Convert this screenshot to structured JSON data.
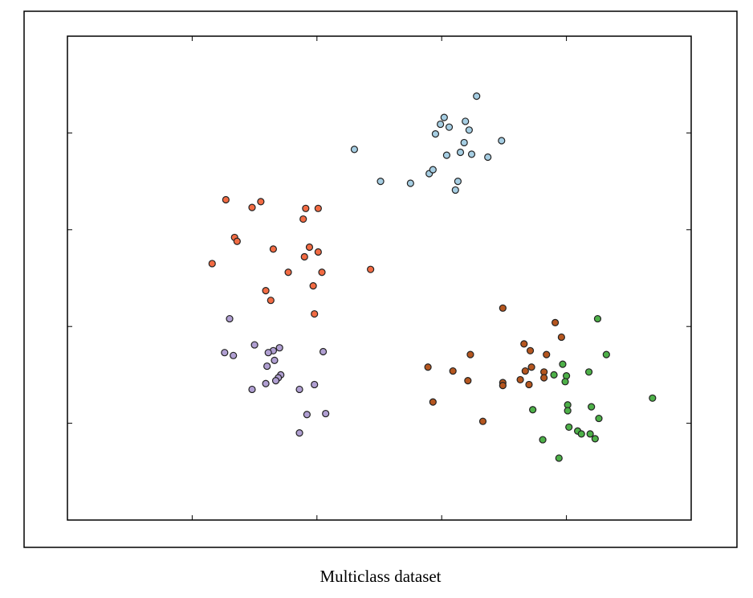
{
  "chart_data": {
    "type": "scatter",
    "caption": "Multiclass dataset",
    "xlim": [
      0,
      5
    ],
    "ylim": [
      0,
      5
    ],
    "xticks": [
      1,
      2,
      3,
      4
    ],
    "yticks": [
      1,
      2,
      3,
      4
    ],
    "series": [
      {
        "color": "#a6cee3",
        "x": [
          3.28,
          3.02,
          2.99,
          3.06,
          3.19,
          3.22,
          2.95,
          3.18,
          3.48,
          3.04,
          3.15,
          3.24,
          3.37,
          2.3,
          2.51,
          2.75,
          2.9,
          2.93,
          3.13,
          3.11
        ],
        "values": [
          4.38,
          4.16,
          4.09,
          4.06,
          4.12,
          4.03,
          3.99,
          3.9,
          3.92,
          3.77,
          3.8,
          3.78,
          3.75,
          3.83,
          3.5,
          3.48,
          3.58,
          3.62,
          3.5,
          3.41
        ]
      },
      {
        "color": "#f26b43",
        "x": [
          1.27,
          1.55,
          1.48,
          1.91,
          2.01,
          1.89,
          1.34,
          1.36,
          1.65,
          1.94,
          2.01,
          1.9,
          1.16,
          1.77,
          2.04,
          2.43,
          1.97,
          1.59,
          1.63,
          1.98
        ],
        "values": [
          3.31,
          3.29,
          3.23,
          3.22,
          3.22,
          3.11,
          2.92,
          2.88,
          2.8,
          2.82,
          2.77,
          2.72,
          2.65,
          2.56,
          2.56,
          2.59,
          2.42,
          2.37,
          2.27,
          2.13
        ]
      },
      {
        "color": "#b09fd2",
        "x": [
          1.3,
          1.5,
          1.7,
          1.65,
          1.61,
          1.26,
          1.33,
          2.05,
          1.66,
          1.6,
          1.71,
          1.69,
          1.59,
          1.67,
          1.48,
          1.86,
          1.98,
          1.92,
          2.07,
          1.86
        ],
        "values": [
          2.08,
          1.81,
          1.78,
          1.75,
          1.73,
          1.73,
          1.7,
          1.74,
          1.65,
          1.59,
          1.5,
          1.47,
          1.41,
          1.44,
          1.35,
          1.35,
          1.4,
          1.09,
          1.1,
          0.9
        ]
      },
      {
        "color": "#b5561f",
        "x": [
          3.49,
          3.91,
          3.96,
          3.66,
          3.71,
          3.23,
          3.84,
          2.89,
          3.09,
          3.72,
          3.67,
          3.82,
          3.82,
          3.63,
          3.21,
          3.49,
          3.49,
          3.7,
          2.93,
          3.33
        ],
        "values": [
          2.19,
          2.04,
          1.89,
          1.82,
          1.75,
          1.71,
          1.71,
          1.58,
          1.54,
          1.58,
          1.54,
          1.53,
          1.47,
          1.45,
          1.44,
          1.42,
          1.39,
          1.4,
          1.22,
          1.02
        ]
      },
      {
        "color": "#4db048",
        "x": [
          4.25,
          4.32,
          3.97,
          4.18,
          3.9,
          4.0,
          3.99,
          4.69,
          4.01,
          3.73,
          4.2,
          4.01,
          4.26,
          4.02,
          4.09,
          4.12,
          4.19,
          4.23,
          3.81,
          3.94
        ],
        "values": [
          2.08,
          1.71,
          1.61,
          1.53,
          1.5,
          1.49,
          1.43,
          1.26,
          1.19,
          1.14,
          1.17,
          1.13,
          1.05,
          0.96,
          0.92,
          0.89,
          0.89,
          0.84,
          0.83,
          0.64
        ]
      }
    ]
  }
}
